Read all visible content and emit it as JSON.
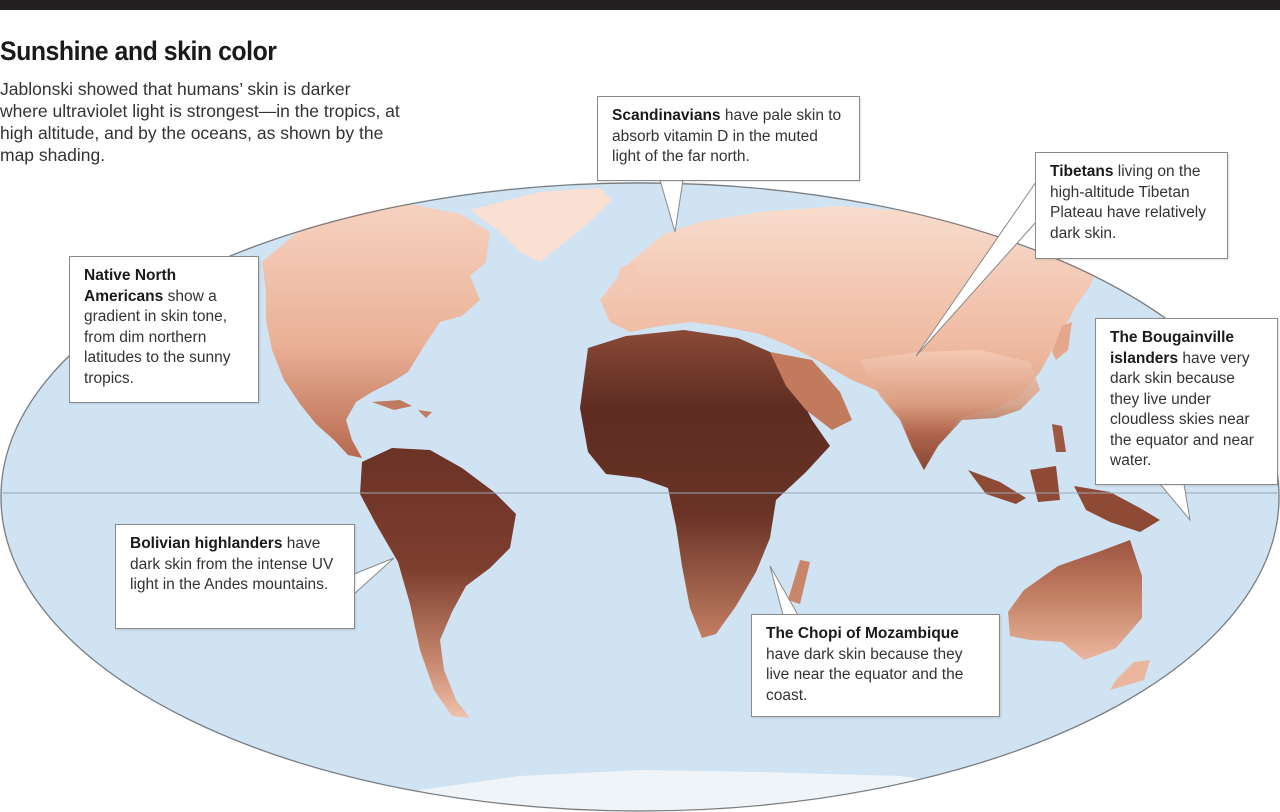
{
  "title": "Sunshine and skin color",
  "intro": "Jablonski showed that humans’ skin is darker where ultraviolet light is strongest—in the tropics, at high altitude, and by the oceans, as shown by the map shading.",
  "colors": {
    "ocean": "#cfe3f3",
    "land_pale": "#f3c3ab",
    "land_mid": "#c98569",
    "land_dark": "#5e2c22",
    "top_bar": "#231f20"
  },
  "callouts": {
    "scandinavians": {
      "bold": "Scandinavians",
      "text": " have pale skin to absorb vitamin D in the muted light of the far north."
    },
    "tibetans": {
      "bold": "Tibetans",
      "text": " living on the high-altitude Tibetan Plateau have relatively dark skin."
    },
    "native_north_americans": {
      "bold": "Native North Americans",
      "text": " show a gradient in skin tone, from dim northern latitudes to the sunny tropics."
    },
    "bougainville": {
      "bold": "The Bougainville islanders",
      "text": " have very dark skin because they live under cloudless skies near the equator and near water."
    },
    "bolivian": {
      "bold": "Bolivian highlanders",
      "text": " have dark skin from the intense UV light in the Andes mountains."
    },
    "chopi": {
      "bold": "The Chopi of Mozambique",
      "text": " have dark skin because they live near the equator and the coast."
    }
  }
}
